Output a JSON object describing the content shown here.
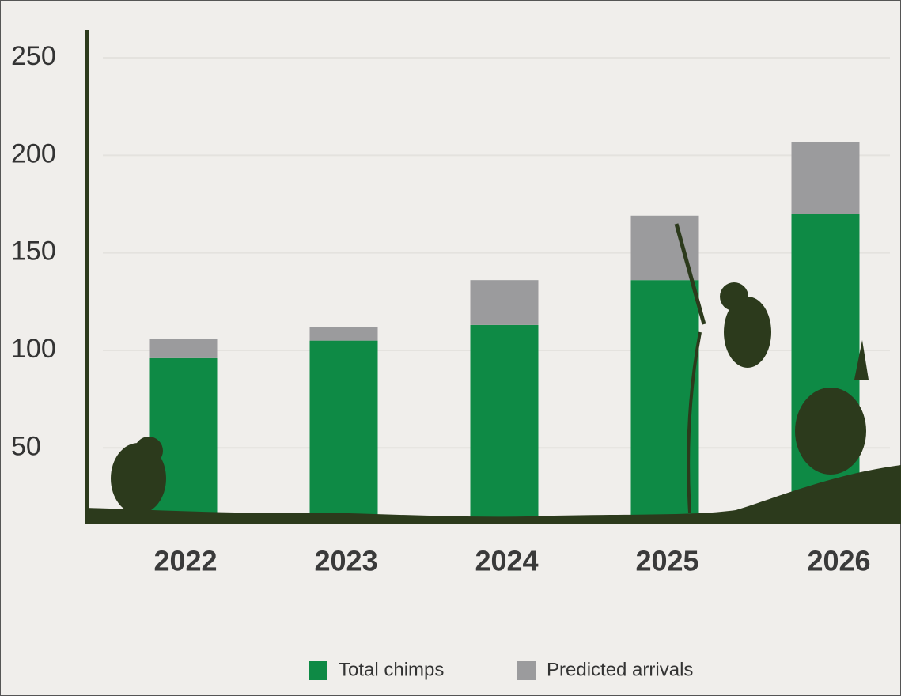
{
  "chart_data": {
    "type": "stacked_bar",
    "categories": [
      "2022",
      "2023",
      "2024",
      "2025",
      "2026"
    ],
    "series": [
      {
        "name": "Total chimps",
        "color": "#0e8a45",
        "values": [
          84,
          93,
          101,
          124,
          158
        ]
      },
      {
        "name": "Predicted arrivals",
        "color": "#9b9b9d",
        "values": [
          10,
          7,
          23,
          33,
          37
        ]
      }
    ],
    "ylim": [
      12,
      265
    ],
    "yticks": [
      50,
      100,
      150,
      200,
      250
    ],
    "grid": true,
    "legend": "bottom"
  }
}
